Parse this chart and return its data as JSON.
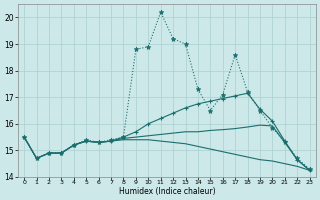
{
  "xlabel": "Humidex (Indice chaleur)",
  "xlim": [
    -0.5,
    23.5
  ],
  "ylim": [
    14,
    20.5
  ],
  "yticks": [
    14,
    15,
    16,
    17,
    18,
    19,
    20
  ],
  "xticks": [
    0,
    1,
    2,
    3,
    4,
    5,
    6,
    7,
    8,
    9,
    10,
    11,
    12,
    13,
    14,
    15,
    16,
    17,
    18,
    19,
    20,
    21,
    22,
    23
  ],
  "bg_color": "#cce8e8",
  "grid_color": "#aacfcf",
  "line_color": "#1a6e6e",
  "line1_y": [
    15.5,
    14.7,
    14.9,
    14.9,
    15.2,
    15.4,
    15.3,
    15.4,
    15.5,
    18.8,
    18.9,
    20.2,
    19.2,
    19.0,
    17.3,
    16.5,
    17.1,
    18.6,
    17.2,
    16.5,
    15.85,
    15.3,
    14.7,
    14.3
  ],
  "line2_y": [
    15.5,
    14.7,
    14.9,
    14.9,
    15.2,
    15.35,
    15.3,
    15.35,
    15.5,
    15.7,
    16.0,
    16.2,
    16.4,
    16.6,
    16.75,
    16.85,
    16.95,
    17.05,
    17.15,
    16.55,
    16.1,
    15.35,
    14.65,
    14.25
  ],
  "line3_y": [
    15.5,
    14.7,
    14.9,
    14.9,
    15.2,
    15.35,
    15.3,
    15.35,
    15.4,
    15.4,
    15.4,
    15.35,
    15.3,
    15.25,
    15.15,
    15.05,
    14.95,
    14.85,
    14.75,
    14.65,
    14.6,
    14.5,
    14.4,
    14.25
  ],
  "line4_y": [
    15.5,
    14.7,
    14.9,
    14.9,
    15.2,
    15.35,
    15.3,
    15.35,
    15.45,
    15.5,
    15.55,
    15.6,
    15.65,
    15.7,
    15.7,
    15.75,
    15.78,
    15.82,
    15.88,
    15.95,
    15.92,
    15.3,
    14.65,
    14.25
  ]
}
